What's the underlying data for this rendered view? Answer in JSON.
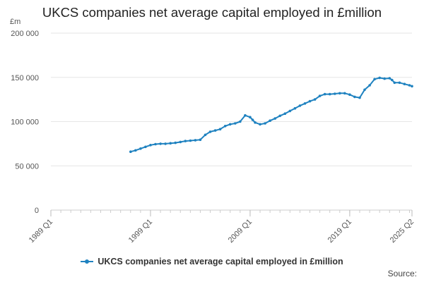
{
  "chart_data": {
    "type": "line",
    "title": "UKCS companies net average capital employed in £million",
    "ylabel": "£m",
    "ylim": [
      0,
      200000
    ],
    "yticks": [
      "0",
      "50 000",
      "100 000",
      "150 000",
      "200 000"
    ],
    "xlim": [
      "1989 Q1",
      "2025 Q2"
    ],
    "xticks": [
      "1989 Q1",
      "1999 Q1",
      "2009 Q1",
      "2019 Q1",
      "2025 Q2"
    ],
    "grid": true,
    "legend_position": "bottom",
    "series": [
      {
        "name": "UKCS companies net average capital employed in £million",
        "color": "#1f82c0",
        "x": [
          "1997 Q1",
          "1997 Q3",
          "1998 Q1",
          "1998 Q3",
          "1999 Q1",
          "1999 Q3",
          "2000 Q1",
          "2000 Q3",
          "2001 Q1",
          "2001 Q3",
          "2002 Q1",
          "2002 Q3",
          "2003 Q1",
          "2003 Q3",
          "2004 Q1",
          "2004 Q3",
          "2005 Q1",
          "2005 Q3",
          "2006 Q1",
          "2006 Q3",
          "2007 Q1",
          "2007 Q3",
          "2008 Q1",
          "2008 Q3",
          "2009 Q1",
          "2009 Q2",
          "2009 Q3",
          "2010 Q1",
          "2010 Q3",
          "2011 Q1",
          "2011 Q3",
          "2012 Q1",
          "2012 Q3",
          "2013 Q1",
          "2013 Q3",
          "2014 Q1",
          "2014 Q3",
          "2015 Q1",
          "2015 Q3",
          "2016 Q1",
          "2016 Q3",
          "2017 Q1",
          "2017 Q3",
          "2018 Q1",
          "2018 Q3",
          "2019 Q1",
          "2019 Q3",
          "2020 Q1",
          "2020 Q3",
          "2021 Q1",
          "2021 Q3",
          "2022 Q1",
          "2022 Q3",
          "2023 Q1",
          "2023 Q2",
          "2023 Q3",
          "2024 Q1",
          "2024 Q3",
          "2025 Q1",
          "2025 Q2"
        ],
        "values": [
          66000,
          67500,
          69500,
          71500,
          73500,
          74500,
          75000,
          75000,
          75500,
          76000,
          77000,
          78000,
          78500,
          79000,
          79500,
          85000,
          88500,
          90000,
          91500,
          95000,
          97000,
          98000,
          100000,
          107000,
          105000,
          102000,
          99000,
          97000,
          98000,
          101000,
          103500,
          106500,
          109000,
          112000,
          115000,
          118000,
          120500,
          123000,
          125000,
          129000,
          131000,
          131000,
          131500,
          132000,
          132000,
          130500,
          128000,
          127000,
          136000,
          141000,
          148000,
          149500,
          148500,
          149000,
          147000,
          144000,
          144000,
          142500,
          141000,
          140000
        ]
      }
    ]
  },
  "source_label": "Source:"
}
